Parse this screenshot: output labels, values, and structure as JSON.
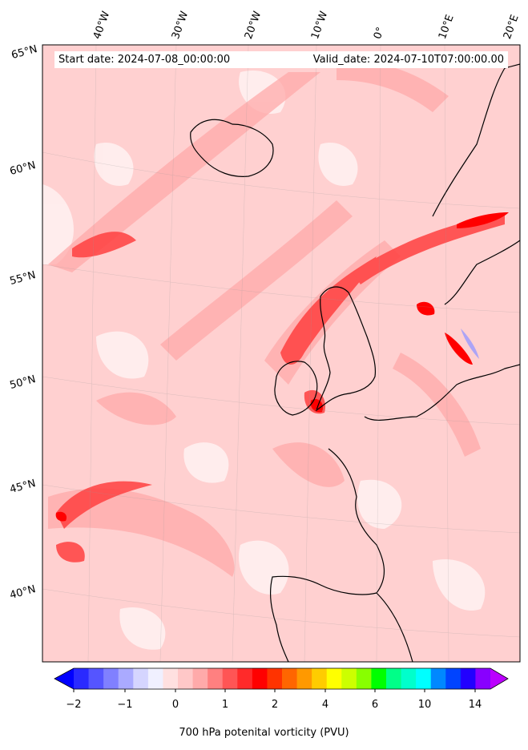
{
  "map": {
    "start_label": "Start date: 2024-07-08_00:00:00",
    "valid_label": "Valid_date: 2024-07-10T07:00:00.00",
    "variable": "700 hPa potenital vorticity (PVU)",
    "background_color": "#ffd6d6",
    "coastline_color": "#000000",
    "longitude_labels": [
      "40°W",
      "30°W",
      "20°W",
      "10°W",
      "0°",
      "10°E",
      "20°E"
    ],
    "latitude_labels": [
      "65°N",
      "60°N",
      "55°N",
      "50°N",
      "45°N",
      "40°N"
    ]
  },
  "colorbar": {
    "tick_labels": [
      "−2",
      "−1",
      "0",
      "1",
      "2",
      "4",
      "6",
      "10",
      "14"
    ],
    "colors": [
      "#0000ff",
      "#2a2aff",
      "#5555ff",
      "#8080ff",
      "#aaaaff",
      "#d5d5ff",
      "#f0f0ff",
      "#ffe0e0",
      "#ffc8c8",
      "#ffaaaa",
      "#ff8080",
      "#ff5555",
      "#ff2a2a",
      "#ff0000",
      "#ff3300",
      "#ff6600",
      "#ff9900",
      "#ffcc00",
      "#ffff00",
      "#ccff00",
      "#88ff00",
      "#00ff00",
      "#00ff88",
      "#00ffcc",
      "#00ffff",
      "#0088ff",
      "#0044ff",
      "#2200ff",
      "#8800ff",
      "#bb00ff"
    ]
  }
}
